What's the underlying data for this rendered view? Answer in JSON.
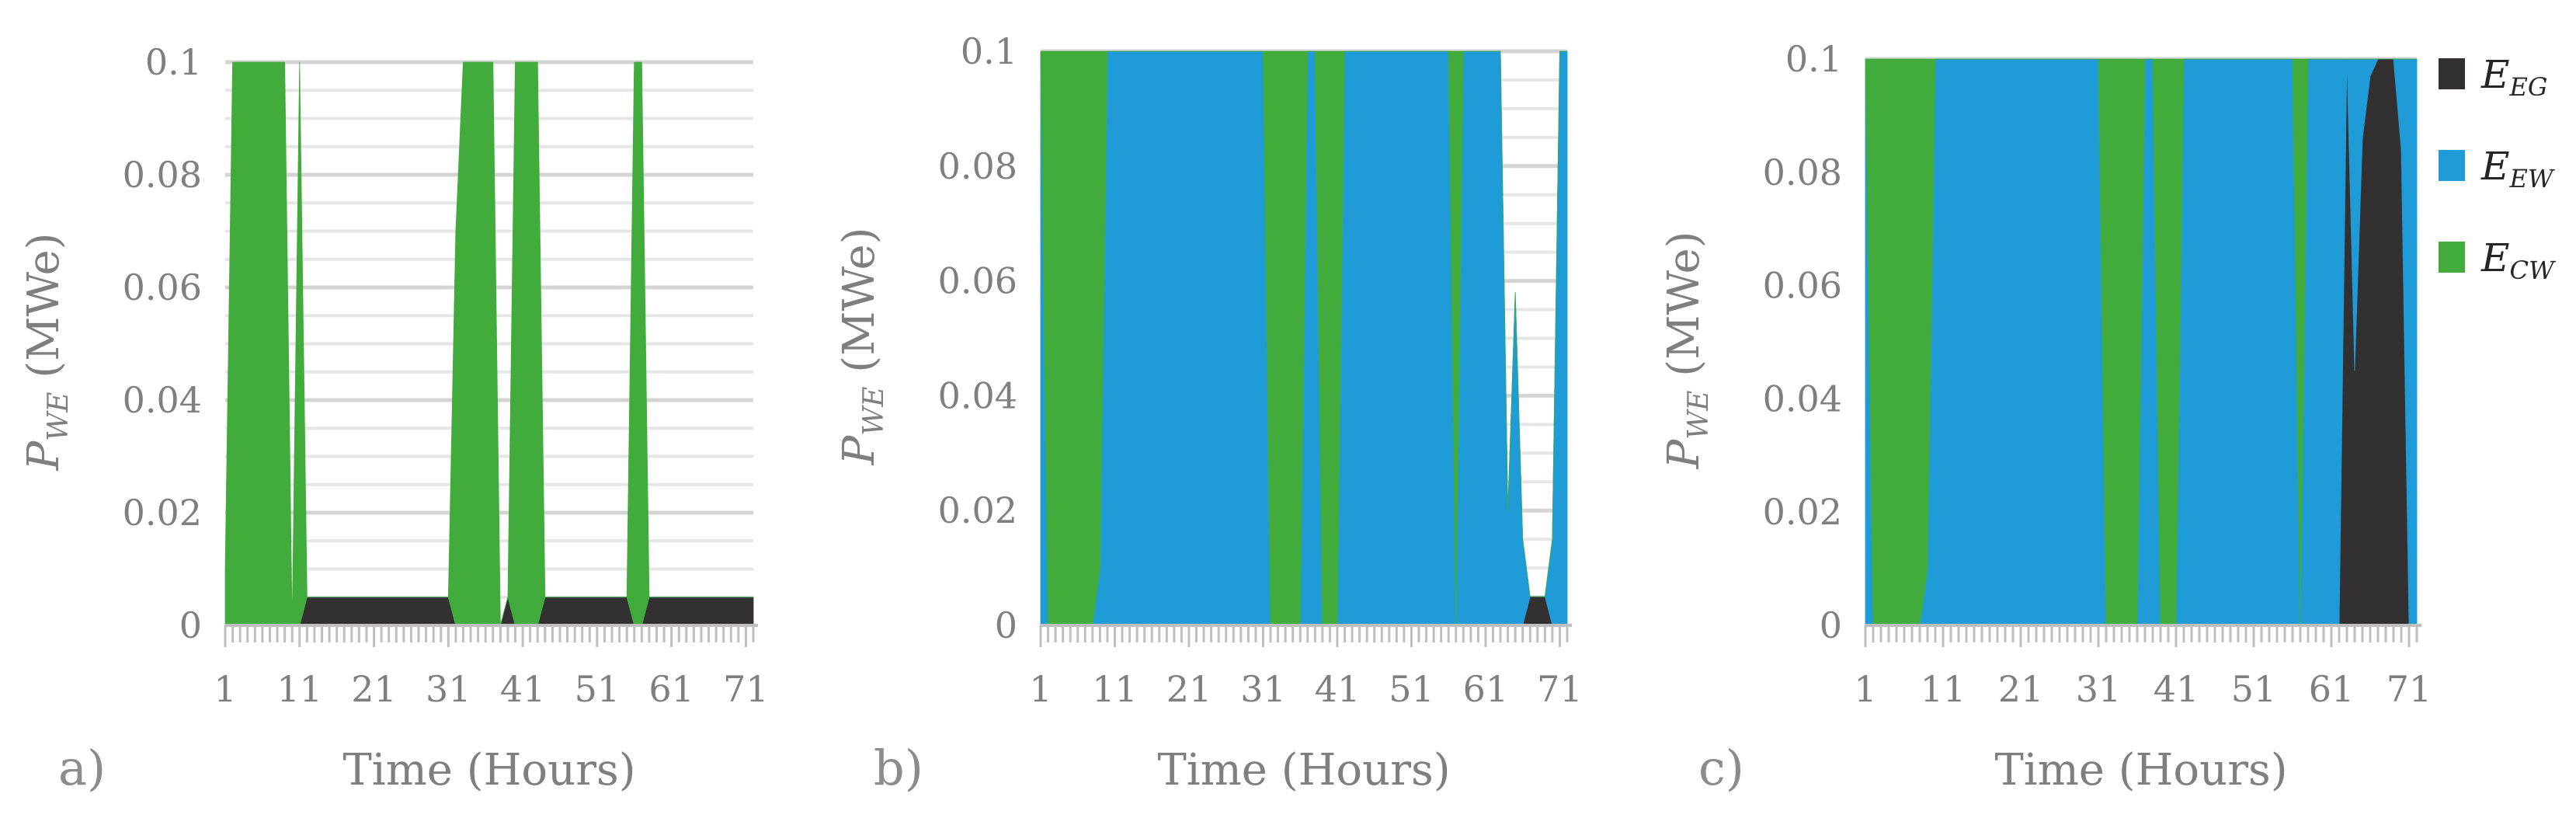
{
  "chart_data": [
    {
      "type": "area",
      "panel_label": "a)",
      "xlabel": "Time (Hours)",
      "ylabel_main": "P",
      "ylabel_sub": "WE",
      "ylabel_unit": " (MWe)",
      "ylim": [
        0,
        0.1
      ],
      "xlim": [
        1,
        72
      ],
      "y_ticks": [
        "0",
        "0.02",
        "0.04",
        "0.06",
        "0.08",
        "0.1"
      ],
      "x_ticks": [
        "1",
        "11",
        "21",
        "31",
        "41",
        "51",
        "61",
        "71"
      ],
      "grid": true,
      "x": [
        1,
        2,
        3,
        4,
        5,
        6,
        7,
        8,
        9,
        10,
        11,
        12,
        13,
        14,
        15,
        16,
        17,
        18,
        19,
        20,
        21,
        22,
        23,
        24,
        25,
        26,
        27,
        28,
        29,
        30,
        31,
        32,
        33,
        34,
        35,
        36,
        37,
        38,
        39,
        40,
        41,
        42,
        43,
        44,
        45,
        46,
        47,
        48,
        49,
        50,
        51,
        52,
        53,
        54,
        55,
        56,
        57,
        58,
        59,
        60,
        61,
        62,
        63,
        64,
        65,
        66,
        67,
        68,
        69,
        70,
        71,
        72
      ],
      "series": [
        {
          "name": "E_EG",
          "color": "#333031",
          "values": [
            0,
            0,
            0,
            0,
            0,
            0,
            0,
            0,
            0,
            0,
            0,
            0.005,
            0.005,
            0.005,
            0.005,
            0.005,
            0.005,
            0.005,
            0.005,
            0.005,
            0.005,
            0.005,
            0.005,
            0.005,
            0.005,
            0.005,
            0.005,
            0.005,
            0.005,
            0.005,
            0.005,
            0,
            0,
            0,
            0,
            0,
            0,
            0,
            0.005,
            0,
            0,
            0,
            0,
            0.005,
            0.005,
            0.005,
            0.005,
            0.005,
            0.005,
            0.005,
            0.005,
            0.005,
            0.005,
            0.005,
            0.005,
            0,
            0,
            0.005,
            0.005,
            0.005,
            0.005,
            0.005,
            0.005,
            0.005,
            0.005,
            0.005,
            0.005,
            0.005,
            0.005,
            0.005,
            0.005,
            0.005
          ]
        },
        {
          "name": "E_EW",
          "color": "#1f9bd7",
          "values": [
            0,
            0,
            0,
            0,
            0,
            0,
            0,
            0,
            0,
            0,
            0,
            0,
            0,
            0,
            0,
            0,
            0,
            0,
            0,
            0,
            0,
            0,
            0,
            0,
            0,
            0,
            0,
            0,
            0,
            0,
            0,
            0,
            0,
            0,
            0,
            0,
            0,
            0,
            0,
            0,
            0,
            0,
            0,
            0,
            0,
            0,
            0,
            0,
            0,
            0,
            0,
            0,
            0,
            0,
            0,
            0,
            0,
            0,
            0,
            0,
            0,
            0,
            0,
            0,
            0,
            0,
            0,
            0,
            0,
            0,
            0,
            0
          ]
        },
        {
          "name": "E_CW",
          "color": "#41ac3c",
          "values": [
            0.01,
            0.1,
            0.1,
            0.1,
            0.1,
            0.1,
            0.1,
            0.1,
            0.1,
            0,
            0.1,
            0,
            0,
            0,
            0,
            0,
            0,
            0,
            0,
            0,
            0,
            0,
            0,
            0,
            0,
            0,
            0,
            0,
            0,
            0,
            0,
            0.07,
            0.1,
            0.1,
            0.1,
            0.1,
            0.1,
            0,
            0,
            0.1,
            0.1,
            0.1,
            0.1,
            0,
            0,
            0,
            0,
            0,
            0,
            0,
            0,
            0,
            0,
            0,
            0,
            0.1,
            0.1,
            0,
            0,
            0,
            0,
            0,
            0,
            0,
            0,
            0,
            0,
            0,
            0,
            0,
            0,
            0
          ]
        }
      ]
    },
    {
      "type": "area",
      "panel_label": "b)",
      "xlabel": "Time (Hours)",
      "ylabel_main": "P",
      "ylabel_sub": "WE",
      "ylabel_unit": " (MWe)",
      "ylim": [
        0,
        0.1
      ],
      "xlim": [
        1,
        72
      ],
      "y_ticks": [
        "0",
        "0.02",
        "0.04",
        "0.06",
        "0.08",
        "0.1"
      ],
      "x_ticks": [
        "1",
        "11",
        "21",
        "31",
        "41",
        "51",
        "61",
        "71"
      ],
      "grid": true,
      "x": [
        1,
        2,
        3,
        4,
        5,
        6,
        7,
        8,
        9,
        10,
        11,
        12,
        13,
        14,
        15,
        16,
        17,
        18,
        19,
        20,
        21,
        22,
        23,
        24,
        25,
        26,
        27,
        28,
        29,
        30,
        31,
        32,
        33,
        34,
        35,
        36,
        37,
        38,
        39,
        40,
        41,
        42,
        43,
        44,
        45,
        46,
        47,
        48,
        49,
        50,
        51,
        52,
        53,
        54,
        55,
        56,
        57,
        58,
        59,
        60,
        61,
        62,
        63,
        64,
        65,
        66,
        67,
        68,
        69,
        70,
        71,
        72
      ],
      "series": [
        {
          "name": "E_EG",
          "color": "#333031",
          "values": [
            0,
            0,
            0,
            0,
            0,
            0,
            0,
            0,
            0,
            0,
            0,
            0,
            0,
            0,
            0,
            0,
            0,
            0,
            0,
            0,
            0,
            0,
            0,
            0,
            0,
            0,
            0,
            0,
            0,
            0,
            0,
            0,
            0,
            0,
            0,
            0,
            0,
            0,
            0,
            0,
            0,
            0,
            0,
            0,
            0,
            0,
            0,
            0,
            0,
            0,
            0,
            0,
            0,
            0,
            0,
            0,
            0,
            0,
            0,
            0,
            0,
            0,
            0,
            0,
            0,
            0,
            0.005,
            0.005,
            0.005,
            0,
            0,
            0
          ]
        },
        {
          "name": "E_EW",
          "color": "#1f9bd7",
          "values": [
            0.1,
            0,
            0,
            0,
            0,
            0,
            0,
            0,
            0.01,
            0.1,
            0.1,
            0.1,
            0.1,
            0.1,
            0.1,
            0.1,
            0.1,
            0.1,
            0.1,
            0.1,
            0.1,
            0.1,
            0.1,
            0.1,
            0.1,
            0.1,
            0.1,
            0.1,
            0.1,
            0.1,
            0.1,
            0,
            0,
            0,
            0,
            0,
            0.1,
            0.1,
            0,
            0,
            0,
            0.1,
            0.1,
            0.1,
            0.1,
            0.1,
            0.1,
            0.1,
            0.1,
            0.1,
            0.1,
            0.1,
            0.1,
            0.1,
            0.1,
            0.1,
            0,
            0.1,
            0.1,
            0.1,
            0.1,
            0.1,
            0.1,
            0.02,
            0.058,
            0.015,
            0,
            0,
            0,
            0.015,
            0.1,
            0.1
          ]
        },
        {
          "name": "E_CW",
          "color": "#41ac3c",
          "values": [
            0,
            0.1,
            0.1,
            0.1,
            0.1,
            0.1,
            0.1,
            0.1,
            0.09,
            0,
            0,
            0,
            0,
            0,
            0,
            0,
            0,
            0,
            0,
            0,
            0,
            0,
            0,
            0,
            0,
            0,
            0,
            0,
            0,
            0,
            0,
            0.1,
            0.1,
            0.1,
            0.1,
            0.1,
            0,
            0,
            0.1,
            0.1,
            0.1,
            0,
            0,
            0,
            0,
            0,
            0,
            0,
            0,
            0,
            0,
            0,
            0,
            0,
            0,
            0,
            0.1,
            0,
            0,
            0,
            0,
            0,
            0,
            0,
            0,
            0,
            0,
            0,
            0,
            0,
            0,
            0
          ]
        }
      ]
    },
    {
      "type": "area",
      "panel_label": "c)",
      "xlabel": "Time (Hours)",
      "ylabel_main": "P",
      "ylabel_sub": "WE",
      "ylabel_unit": " (MWe)",
      "ylim": [
        0,
        0.1
      ],
      "xlim": [
        1,
        72
      ],
      "y_ticks": [
        "0",
        "0.02",
        "0.04",
        "0.06",
        "0.08",
        "0.1"
      ],
      "x_ticks": [
        "1",
        "11",
        "21",
        "31",
        "41",
        "51",
        "61",
        "71"
      ],
      "grid": true,
      "x": [
        1,
        2,
        3,
        4,
        5,
        6,
        7,
        8,
        9,
        10,
        11,
        12,
        13,
        14,
        15,
        16,
        17,
        18,
        19,
        20,
        21,
        22,
        23,
        24,
        25,
        26,
        27,
        28,
        29,
        30,
        31,
        32,
        33,
        34,
        35,
        36,
        37,
        38,
        39,
        40,
        41,
        42,
        43,
        44,
        45,
        46,
        47,
        48,
        49,
        50,
        51,
        52,
        53,
        54,
        55,
        56,
        57,
        58,
        59,
        60,
        61,
        62,
        63,
        64,
        65,
        66,
        67,
        68,
        69,
        70,
        71,
        72
      ],
      "series": [
        {
          "name": "E_EG",
          "color": "#333031",
          "values": [
            0,
            0,
            0,
            0,
            0,
            0,
            0,
            0,
            0,
            0,
            0,
            0,
            0,
            0,
            0,
            0,
            0,
            0,
            0,
            0,
            0,
            0,
            0,
            0,
            0,
            0,
            0,
            0,
            0,
            0,
            0,
            0,
            0,
            0,
            0,
            0,
            0,
            0,
            0,
            0,
            0,
            0,
            0,
            0,
            0,
            0,
            0,
            0,
            0,
            0,
            0,
            0,
            0,
            0,
            0,
            0,
            0,
            0,
            0,
            0,
            0,
            0,
            0.1,
            0.045,
            0.086,
            0.097,
            0.1,
            0.1,
            0.1,
            0.084,
            0,
            0
          ]
        },
        {
          "name": "E_EW",
          "color": "#1f9bd7",
          "values": [
            0.1,
            0,
            0,
            0,
            0,
            0,
            0,
            0,
            0.01,
            0.1,
            0.1,
            0.1,
            0.1,
            0.1,
            0.1,
            0.1,
            0.1,
            0.1,
            0.1,
            0.1,
            0.1,
            0.1,
            0.1,
            0.1,
            0.1,
            0.1,
            0.1,
            0.1,
            0.1,
            0.1,
            0.1,
            0,
            0,
            0,
            0,
            0,
            0.1,
            0.1,
            0,
            0,
            0,
            0.1,
            0.1,
            0.1,
            0.1,
            0.1,
            0.1,
            0.1,
            0.1,
            0.1,
            0.1,
            0.1,
            0.1,
            0.1,
            0.1,
            0.1,
            0,
            0.1,
            0.1,
            0.1,
            0.1,
            0.1,
            0,
            0.055,
            0.014,
            0.003,
            0,
            0,
            0,
            0.016,
            0.1,
            0.1
          ]
        },
        {
          "name": "E_CW",
          "color": "#41ac3c",
          "values": [
            0,
            0.1,
            0.1,
            0.1,
            0.1,
            0.1,
            0.1,
            0.1,
            0.09,
            0,
            0,
            0,
            0,
            0,
            0,
            0,
            0,
            0,
            0,
            0,
            0,
            0,
            0,
            0,
            0,
            0,
            0,
            0,
            0,
            0,
            0,
            0.1,
            0.1,
            0.1,
            0.1,
            0.1,
            0,
            0,
            0.1,
            0.1,
            0.1,
            0,
            0,
            0,
            0,
            0,
            0,
            0,
            0,
            0,
            0,
            0,
            0,
            0,
            0,
            0,
            0.1,
            0,
            0,
            0,
            0,
            0,
            0,
            0,
            0,
            0,
            0,
            0,
            0,
            0,
            0,
            0
          ]
        }
      ]
    }
  ],
  "legend": {
    "placement": "right",
    "items": [
      {
        "main": "E",
        "sub": "EG",
        "color": "#333031"
      },
      {
        "main": "E",
        "sub": "EW",
        "color": "#1f9bd7"
      },
      {
        "main": "E",
        "sub": "CW",
        "color": "#41ac3c"
      }
    ]
  }
}
